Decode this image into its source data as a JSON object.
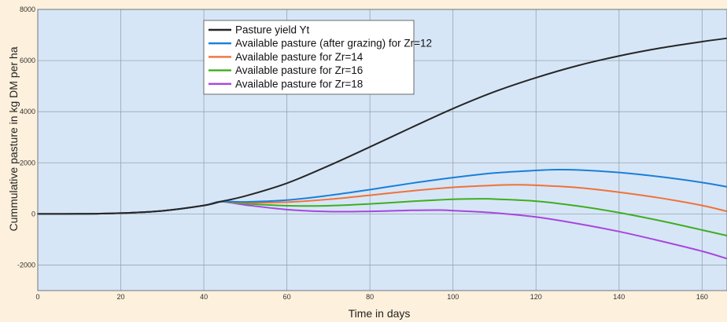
{
  "chart_data": {
    "type": "line",
    "title": "",
    "xlabel": "Time in days",
    "ylabel": "Cummulative pasture in kg DM per ha",
    "xlim": [
      0,
      166
    ],
    "ylim": [
      -3000,
      8000
    ],
    "x_ticks": [
      0,
      20,
      40,
      60,
      80,
      100,
      120,
      140,
      160
    ],
    "y_ticks": [
      -2000,
      0,
      2000,
      4000,
      6000,
      8000
    ],
    "x_tick_labels": [
      "0",
      "20",
      "40",
      "60",
      "80",
      "100",
      "120",
      "140",
      "160"
    ],
    "y_tick_labels": [
      "-2000",
      "0",
      "2000",
      "4000",
      "6000",
      "8000"
    ],
    "grid": true,
    "legend_position": "top-center",
    "colors": {
      "plot_background": "#d6e6f7",
      "figure_background": "#fdf0dc",
      "grid": "#9aa3ae"
    },
    "series": [
      {
        "name": "Pasture yield Yt",
        "color": "#262626",
        "points": [
          [
            0,
            0
          ],
          [
            10,
            3
          ],
          [
            20,
            30
          ],
          [
            30,
            120
          ],
          [
            40,
            330
          ],
          [
            44,
            480
          ],
          [
            50,
            700
          ],
          [
            60,
            1200
          ],
          [
            70,
            1880
          ],
          [
            80,
            2620
          ],
          [
            90,
            3380
          ],
          [
            100,
            4120
          ],
          [
            110,
            4780
          ],
          [
            120,
            5330
          ],
          [
            130,
            5800
          ],
          [
            140,
            6180
          ],
          [
            150,
            6490
          ],
          [
            160,
            6740
          ],
          [
            166,
            6870
          ]
        ]
      },
      {
        "name": "Available pasture (after grazing)  for  Zr=12",
        "color": "#1a7fd8",
        "points": [
          [
            0,
            0
          ],
          [
            10,
            3
          ],
          [
            20,
            30
          ],
          [
            30,
            120
          ],
          [
            40,
            330
          ],
          [
            44,
            480
          ],
          [
            50,
            470
          ],
          [
            60,
            540
          ],
          [
            70,
            720
          ],
          [
            80,
            950
          ],
          [
            90,
            1200
          ],
          [
            100,
            1420
          ],
          [
            110,
            1600
          ],
          [
            120,
            1700
          ],
          [
            125,
            1730
          ],
          [
            130,
            1720
          ],
          [
            140,
            1620
          ],
          [
            150,
            1450
          ],
          [
            160,
            1230
          ],
          [
            166,
            1060
          ]
        ]
      },
      {
        "name": "Available pasture for Zr=14",
        "color": "#f07238",
        "points": [
          [
            0,
            0
          ],
          [
            10,
            3
          ],
          [
            20,
            30
          ],
          [
            30,
            120
          ],
          [
            40,
            330
          ],
          [
            44,
            480
          ],
          [
            50,
            440
          ],
          [
            60,
            460
          ],
          [
            70,
            570
          ],
          [
            80,
            730
          ],
          [
            90,
            900
          ],
          [
            100,
            1040
          ],
          [
            110,
            1120
          ],
          [
            115,
            1140
          ],
          [
            120,
            1120
          ],
          [
            130,
            1030
          ],
          [
            140,
            850
          ],
          [
            150,
            620
          ],
          [
            160,
            330
          ],
          [
            166,
            100
          ]
        ]
      },
      {
        "name": "Available pasture for Zr=16",
        "color": "#3fae1e",
        "points": [
          [
            0,
            0
          ],
          [
            10,
            3
          ],
          [
            20,
            30
          ],
          [
            30,
            120
          ],
          [
            40,
            330
          ],
          [
            44,
            480
          ],
          [
            50,
            400
          ],
          [
            60,
            320
          ],
          [
            70,
            320
          ],
          [
            80,
            390
          ],
          [
            90,
            490
          ],
          [
            100,
            570
          ],
          [
            107,
            590
          ],
          [
            110,
            580
          ],
          [
            120,
            500
          ],
          [
            130,
            310
          ],
          [
            140,
            50
          ],
          [
            150,
            -270
          ],
          [
            160,
            -630
          ],
          [
            166,
            -850
          ]
        ]
      },
      {
        "name": "Available pasture for Zr=18",
        "color": "#a845e0",
        "points": [
          [
            0,
            0
          ],
          [
            10,
            3
          ],
          [
            20,
            30
          ],
          [
            30,
            120
          ],
          [
            40,
            330
          ],
          [
            44,
            480
          ],
          [
            50,
            350
          ],
          [
            60,
            170
          ],
          [
            70,
            90
          ],
          [
            80,
            100
          ],
          [
            90,
            140
          ],
          [
            97,
            150
          ],
          [
            100,
            130
          ],
          [
            110,
            40
          ],
          [
            120,
            -120
          ],
          [
            130,
            -380
          ],
          [
            140,
            -690
          ],
          [
            150,
            -1060
          ],
          [
            160,
            -1460
          ],
          [
            166,
            -1750
          ]
        ]
      }
    ]
  }
}
